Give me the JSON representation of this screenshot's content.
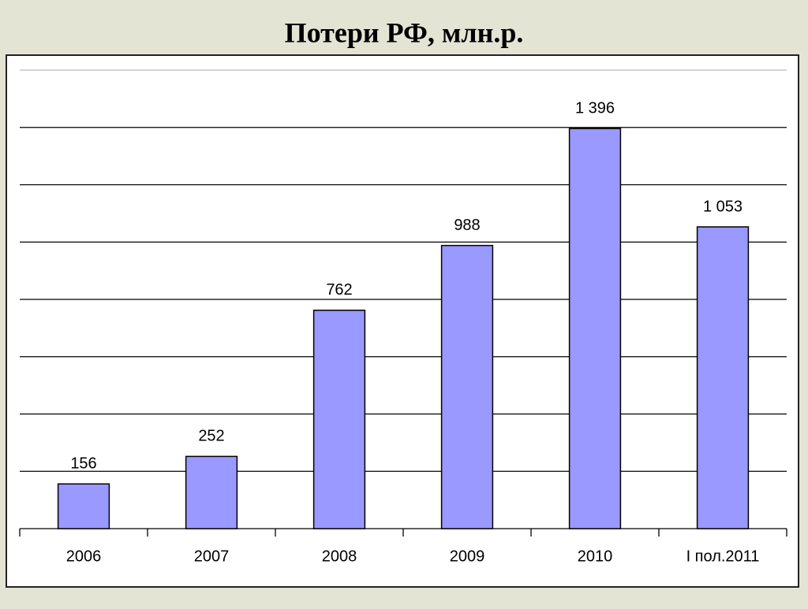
{
  "chart_data": {
    "type": "bar",
    "title": "Потери РФ, млн.р.",
    "categories": [
      "2006",
      "2007",
      "2008",
      "2009",
      "2010",
      "I пол.2011"
    ],
    "values": [
      156,
      252,
      762,
      988,
      1396,
      1053
    ],
    "value_labels": [
      "156",
      "252",
      "762",
      "988",
      "1 396",
      "1 053"
    ],
    "color": "#9999ff",
    "ylim": [
      0,
      1600
    ],
    "yticks": [
      0,
      200,
      400,
      600,
      800,
      1000,
      1200,
      1400,
      1600
    ],
    "grid": true,
    "ytick_labels": false
  }
}
